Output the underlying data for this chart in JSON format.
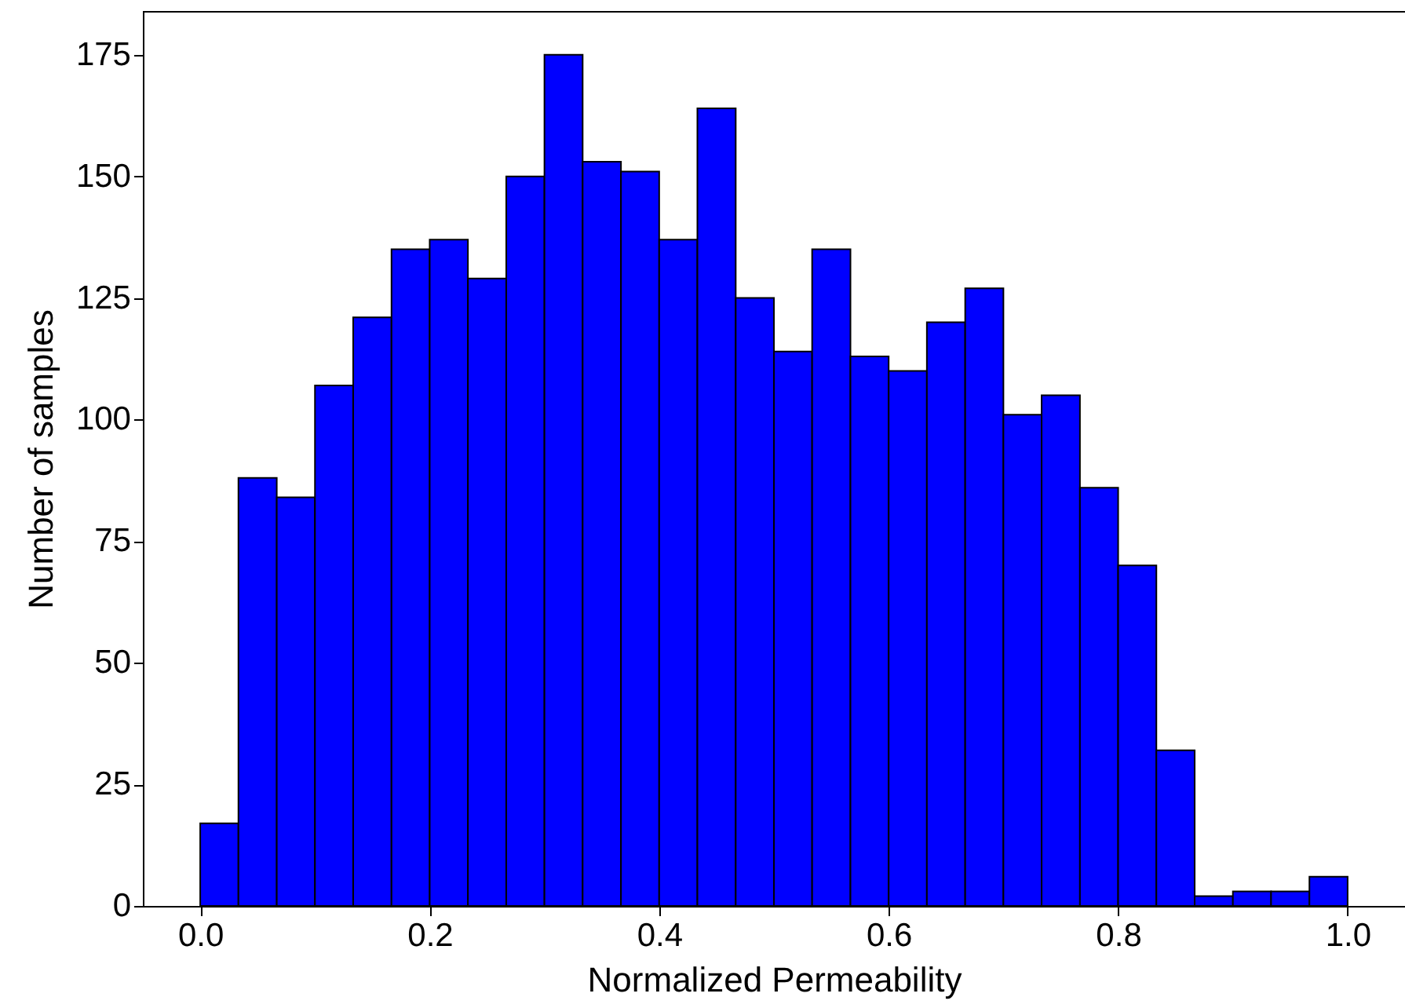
{
  "chart_data": {
    "type": "histogram",
    "xlabel": "Normalized Permeability",
    "ylabel": "Number of samples",
    "bins": [
      0,
      0.0333,
      0.0667,
      0.1,
      0.1333,
      0.1667,
      0.2,
      0.2333,
      0.2667,
      0.3,
      0.3333,
      0.3667,
      0.4,
      0.4333,
      0.4667,
      0.5,
      0.5333,
      0.5667,
      0.6,
      0.6333,
      0.6667,
      0.7,
      0.7333,
      0.7667,
      0.8,
      0.8333,
      0.8667,
      0.9,
      0.9333,
      0.9667,
      1
    ],
    "values": [
      17,
      88,
      84,
      107,
      121,
      135,
      137,
      129,
      150,
      175,
      153,
      151,
      137,
      164,
      125,
      114,
      135,
      113,
      110,
      120,
      127,
      101,
      105,
      86,
      70,
      32,
      2,
      3,
      3,
      6
    ],
    "color": "#0000ff",
    "xlim": [
      -0.05,
      1.05
    ],
    "xticks": [
      {
        "value": 0,
        "label": "0.0"
      },
      {
        "value": 0.2,
        "label": "0.2"
      },
      {
        "value": 0.4,
        "label": "0.4"
      },
      {
        "value": 0.6,
        "label": "0.6"
      },
      {
        "value": 0.8,
        "label": "0.8"
      },
      {
        "value": 1,
        "label": "1.0"
      }
    ],
    "ylim": [
      0,
      184
    ],
    "yticks": [
      0,
      25,
      50,
      75,
      100,
      125,
      150,
      175
    ],
    "grid": false
  }
}
